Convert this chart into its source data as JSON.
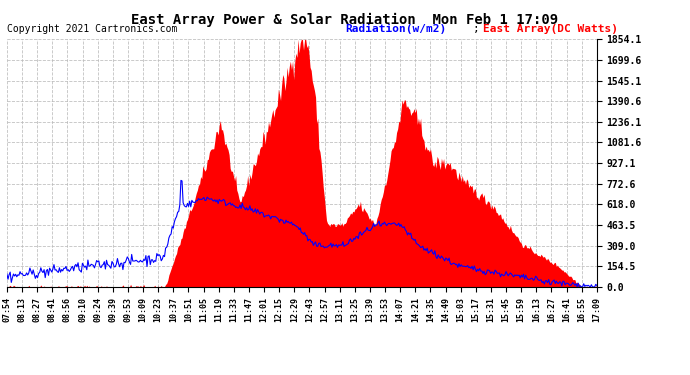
{
  "title": "East Array Power & Solar Radiation  Mon Feb 1 17:09",
  "copyright": "Copyright 2021 Cartronics.com",
  "legend_radiation": "Radiation(w/m2)",
  "legend_east": "East Array(DC Watts)",
  "ymax": 1854.1,
  "yticks": [
    0.0,
    154.5,
    309.0,
    463.5,
    618.0,
    772.6,
    927.1,
    1081.6,
    1236.1,
    1390.6,
    1545.1,
    1699.6,
    1854.1
  ],
  "radiation_color": "blue",
  "east_array_color": "red",
  "background_color": "#ffffff",
  "grid_color": "#bbbbbb",
  "xtick_labels": [
    "07:54",
    "08:13",
    "08:27",
    "08:41",
    "08:56",
    "09:10",
    "09:24",
    "09:39",
    "09:53",
    "10:09",
    "10:23",
    "10:37",
    "10:51",
    "11:05",
    "11:19",
    "11:33",
    "11:47",
    "12:01",
    "12:15",
    "12:29",
    "12:43",
    "12:57",
    "13:11",
    "13:25",
    "13:39",
    "13:53",
    "14:07",
    "14:21",
    "14:35",
    "14:49",
    "15:03",
    "15:17",
    "15:31",
    "15:45",
    "15:59",
    "16:13",
    "16:27",
    "16:41",
    "16:55",
    "17:09"
  ],
  "n_points": 540
}
